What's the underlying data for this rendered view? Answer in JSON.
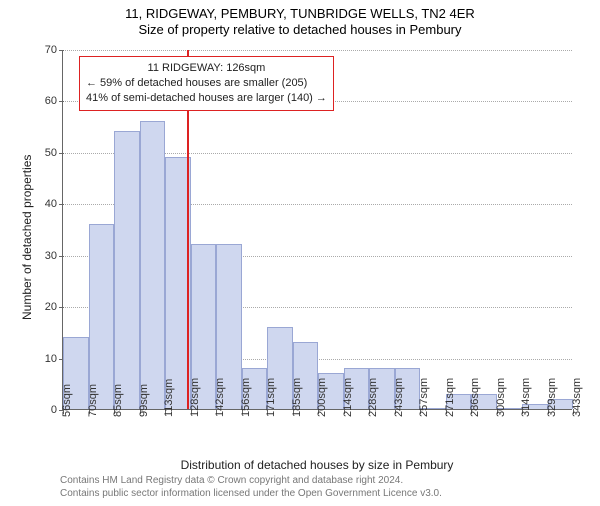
{
  "title": "11, RIDGEWAY, PEMBURY, TUNBRIDGE WELLS, TN2 4ER",
  "subtitle": "Size of property relative to detached houses in Pembury",
  "ylabel": "Number of detached properties",
  "xlabel": "Distribution of detached houses by size in Pembury",
  "footer1": "Contains HM Land Registry data © Crown copyright and database right 2024.",
  "footer2": "Contains public sector information licensed under the Open Government Licence v3.0.",
  "chart": {
    "type": "histogram",
    "ylim": [
      0,
      70
    ],
    "ytick_step": 10,
    "bar_fill": "#cfd7ef",
    "bar_stroke": "#9aa7d4",
    "grid_color": "#aaaaaa",
    "axis_color": "#666666",
    "background_color": "#ffffff",
    "reference_line_color": "#d22",
    "reference_value_sqm": 126,
    "bin_width_sqm": 14.35,
    "x_start_sqm": 56,
    "x_labels": [
      "56sqm",
      "70sqm",
      "85sqm",
      "99sqm",
      "113sqm",
      "128sqm",
      "142sqm",
      "156sqm",
      "171sqm",
      "185sqm",
      "200sqm",
      "214sqm",
      "228sqm",
      "243sqm",
      "257sqm",
      "271sqm",
      "286sqm",
      "300sqm",
      "314sqm",
      "329sqm",
      "343sqm"
    ],
    "values": [
      14,
      36,
      54,
      56,
      49,
      32,
      32,
      8,
      16,
      13,
      7,
      8,
      8,
      8,
      0,
      3,
      3,
      0,
      1,
      2
    ],
    "callout": {
      "line1": "11 RIDGEWAY: 126sqm",
      "line2": "← 59% of detached houses are smaller (205)",
      "line3": "41% of semi-detached houses are larger (140) →"
    }
  }
}
